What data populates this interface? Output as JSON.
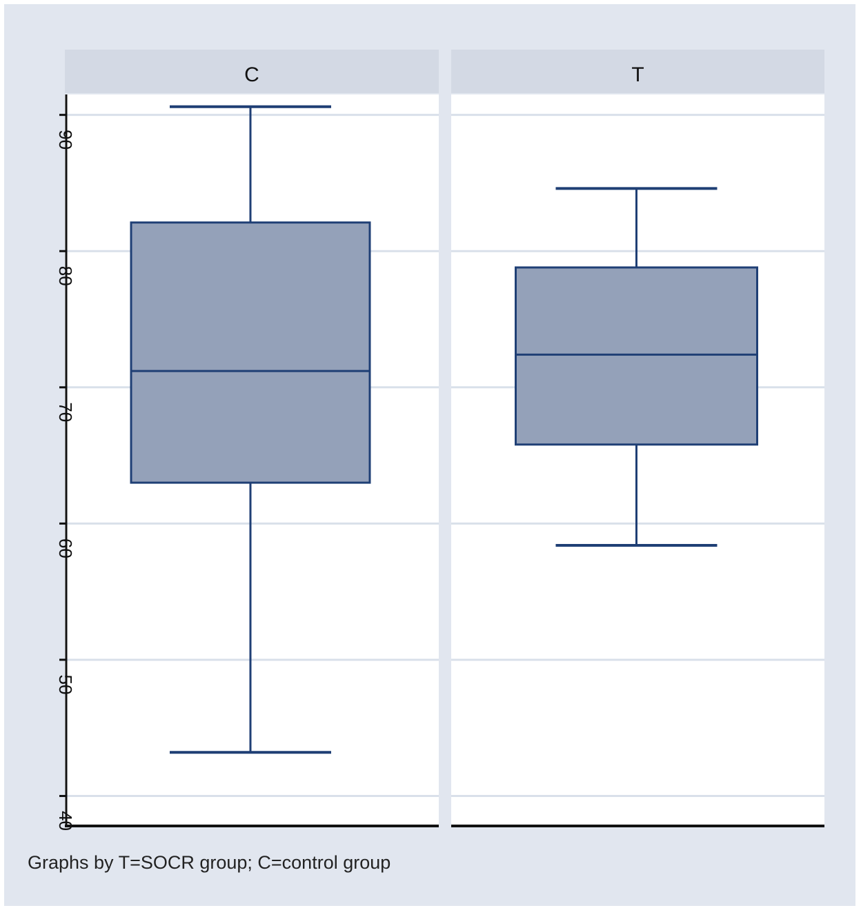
{
  "chart_data": {
    "type": "box",
    "panels": [
      {
        "label": "C",
        "min": 43.2,
        "q1": 63.0,
        "median": 71.2,
        "q3": 82.1,
        "max": 90.6
      },
      {
        "label": "T",
        "min": 58.4,
        "q1": 65.8,
        "median": 72.4,
        "q3": 78.8,
        "max": 84.6
      }
    ],
    "y_ticks": [
      40,
      50,
      60,
      70,
      80,
      90
    ],
    "ylim": [
      37.8,
      91.5
    ],
    "y_tick_labels_rotated": true,
    "grid": true,
    "note": "Graphs by T=SOCR group; C=control group",
    "colors": {
      "box_fill": "#94a1b9",
      "box_line": "#1f3f75",
      "strip_bg": "#d3d9e4",
      "plot_bg": "#ffffff",
      "outer_bg": "#e1e6ef",
      "grid": "#d9e0ea"
    }
  }
}
